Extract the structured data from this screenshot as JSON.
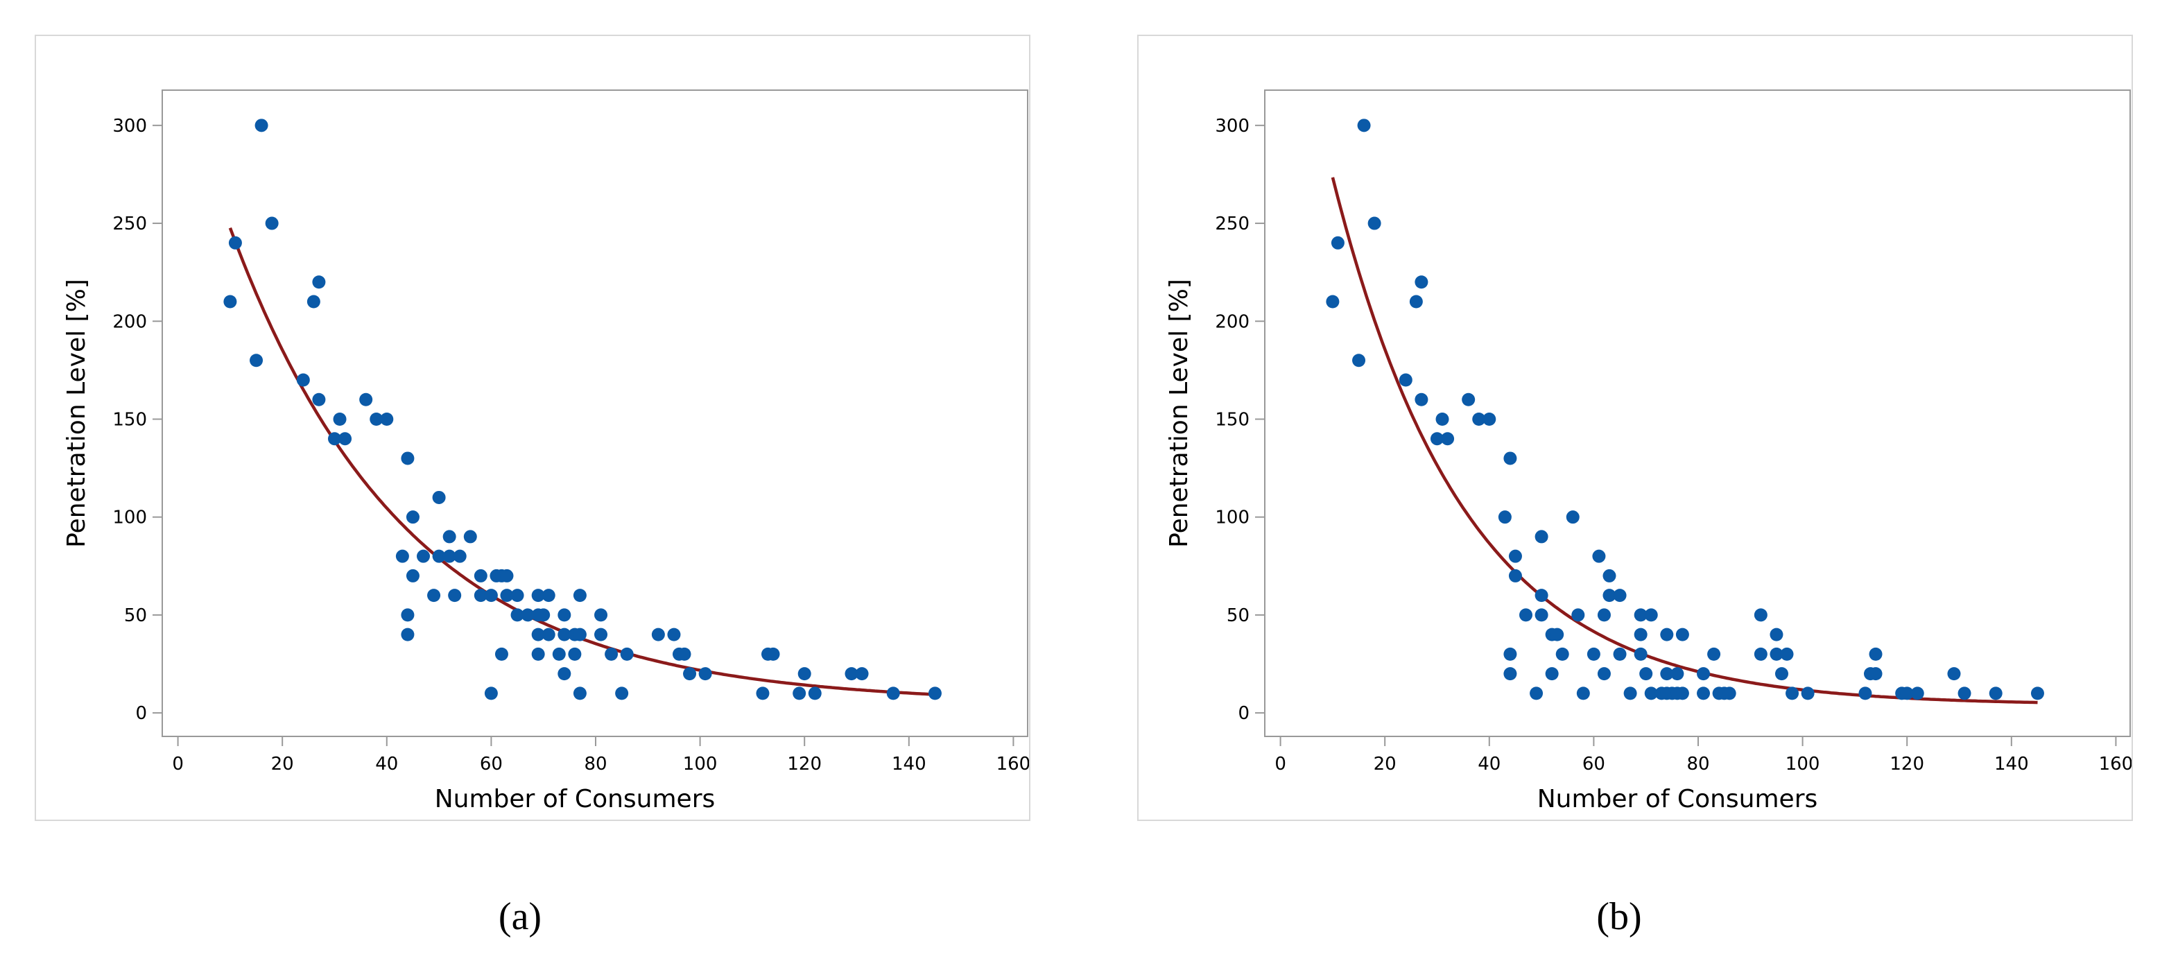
{
  "colors": {
    "points": "#0b5aa8",
    "fit": "#8b1a1a",
    "axis": "#999999",
    "frame": "#d8d8d8"
  },
  "captions": [
    "(a)",
    "(b)"
  ],
  "chart_data": [
    {
      "type": "scatter",
      "title": "",
      "xlabel": "Number of Consumers",
      "ylabel": "Penetration Level [%]",
      "xlim": [
        -3,
        163
      ],
      "ylim": [
        -12,
        318
      ],
      "xticks": [
        0,
        20,
        40,
        60,
        80,
        100,
        120,
        140,
        160
      ],
      "yticks": [
        0,
        50,
        100,
        150,
        200,
        250,
        300
      ],
      "series": [
        {
          "name": "data",
          "points": [
            [
              10,
              210
            ],
            [
              11,
              240
            ],
            [
              15,
              180
            ],
            [
              16,
              300
            ],
            [
              18,
              250
            ],
            [
              24,
              170
            ],
            [
              26,
              210
            ],
            [
              27,
              220
            ],
            [
              27,
              160
            ],
            [
              30,
              140
            ],
            [
              31,
              150
            ],
            [
              32,
              140
            ],
            [
              36,
              160
            ],
            [
              38,
              150
            ],
            [
              40,
              150
            ],
            [
              43,
              80
            ],
            [
              44,
              130
            ],
            [
              44,
              50
            ],
            [
              44,
              40
            ],
            [
              45,
              100
            ],
            [
              45,
              70
            ],
            [
              47,
              80
            ],
            [
              49,
              60
            ],
            [
              50,
              110
            ],
            [
              50,
              80
            ],
            [
              52,
              90
            ],
            [
              52,
              80
            ],
            [
              53,
              60
            ],
            [
              54,
              80
            ],
            [
              56,
              90
            ],
            [
              58,
              70
            ],
            [
              58,
              60
            ],
            [
              60,
              60
            ],
            [
              60,
              10
            ],
            [
              61,
              70
            ],
            [
              62,
              30
            ],
            [
              62,
              70
            ],
            [
              63,
              70
            ],
            [
              63,
              60
            ],
            [
              65,
              60
            ],
            [
              65,
              50
            ],
            [
              67,
              50
            ],
            [
              69,
              60
            ],
            [
              69,
              50
            ],
            [
              69,
              40
            ],
            [
              69,
              30
            ],
            [
              70,
              50
            ],
            [
              71,
              60
            ],
            [
              71,
              40
            ],
            [
              73,
              30
            ],
            [
              74,
              50
            ],
            [
              74,
              40
            ],
            [
              74,
              20
            ],
            [
              76,
              40
            ],
            [
              76,
              30
            ],
            [
              77,
              60
            ],
            [
              77,
              40
            ],
            [
              77,
              10
            ],
            [
              81,
              50
            ],
            [
              81,
              40
            ],
            [
              83,
              30
            ],
            [
              85,
              10
            ],
            [
              86,
              30
            ],
            [
              92,
              40
            ],
            [
              95,
              40
            ],
            [
              96,
              30
            ],
            [
              97,
              30
            ],
            [
              98,
              20
            ],
            [
              101,
              20
            ],
            [
              112,
              10
            ],
            [
              113,
              30
            ],
            [
              114,
              30
            ],
            [
              119,
              10
            ],
            [
              120,
              20
            ],
            [
              122,
              10
            ],
            [
              129,
              20
            ],
            [
              131,
              20
            ],
            [
              137,
              10
            ],
            [
              145,
              10
            ]
          ]
        },
        {
          "name": "fit",
          "curve": {
            "form": "a*exp(-b*x)+c",
            "a": 326.53,
            "b": 0.02969,
            "c": 5
          },
          "x_range": [
            10,
            145
          ]
        }
      ]
    },
    {
      "type": "scatter",
      "title": "",
      "xlabel": "Number of Consumers",
      "ylabel": "Penetration Level [%]",
      "xlim": [
        -3,
        163
      ],
      "ylim": [
        -12,
        318
      ],
      "xticks": [
        0,
        20,
        40,
        60,
        80,
        100,
        120,
        140,
        160
      ],
      "yticks": [
        0,
        50,
        100,
        150,
        200,
        250,
        300
      ],
      "series": [
        {
          "name": "data",
          "points": [
            [
              10,
              210
            ],
            [
              11,
              240
            ],
            [
              15,
              180
            ],
            [
              16,
              300
            ],
            [
              18,
              250
            ],
            [
              24,
              170
            ],
            [
              26,
              210
            ],
            [
              27,
              220
            ],
            [
              27,
              160
            ],
            [
              30,
              140
            ],
            [
              31,
              150
            ],
            [
              32,
              140
            ],
            [
              36,
              160
            ],
            [
              38,
              150
            ],
            [
              40,
              150
            ],
            [
              43,
              100
            ],
            [
              44,
              130
            ],
            [
              44,
              30
            ],
            [
              44,
              20
            ],
            [
              45,
              80
            ],
            [
              45,
              70
            ],
            [
              47,
              50
            ],
            [
              49,
              10
            ],
            [
              50,
              90
            ],
            [
              50,
              60
            ],
            [
              50,
              50
            ],
            [
              52,
              20
            ],
            [
              52,
              40
            ],
            [
              53,
              40
            ],
            [
              54,
              30
            ],
            [
              56,
              100
            ],
            [
              57,
              50
            ],
            [
              58,
              10
            ],
            [
              60,
              30
            ],
            [
              61,
              80
            ],
            [
              62,
              50
            ],
            [
              62,
              20
            ],
            [
              63,
              70
            ],
            [
              63,
              60
            ],
            [
              65,
              60
            ],
            [
              65,
              30
            ],
            [
              67,
              10
            ],
            [
              69,
              50
            ],
            [
              69,
              40
            ],
            [
              69,
              30
            ],
            [
              70,
              20
            ],
            [
              71,
              50
            ],
            [
              71,
              10
            ],
            [
              73,
              10
            ],
            [
              74,
              40
            ],
            [
              74,
              20
            ],
            [
              74,
              10
            ],
            [
              75,
              10
            ],
            [
              76,
              20
            ],
            [
              76,
              10
            ],
            [
              77,
              40
            ],
            [
              77,
              10
            ],
            [
              81,
              20
            ],
            [
              81,
              10
            ],
            [
              83,
              30
            ],
            [
              84,
              10
            ],
            [
              85,
              10
            ],
            [
              86,
              10
            ],
            [
              92,
              50
            ],
            [
              92,
              30
            ],
            [
              95,
              40
            ],
            [
              95,
              30
            ],
            [
              96,
              20
            ],
            [
              97,
              30
            ],
            [
              98,
              10
            ],
            [
              101,
              10
            ],
            [
              112,
              10
            ],
            [
              113,
              20
            ],
            [
              114,
              30
            ],
            [
              114,
              20
            ],
            [
              119,
              10
            ],
            [
              120,
              10
            ],
            [
              122,
              10
            ],
            [
              129,
              20
            ],
            [
              131,
              10
            ],
            [
              137,
              10
            ],
            [
              145,
              10
            ]
          ]
        },
        {
          "name": "fit",
          "curve": {
            "form": "a*exp(-b*x)+c",
            "a": 399.6,
            "b": 0.03941,
            "c": 4
          },
          "x_range": [
            10,
            145
          ]
        }
      ]
    }
  ]
}
